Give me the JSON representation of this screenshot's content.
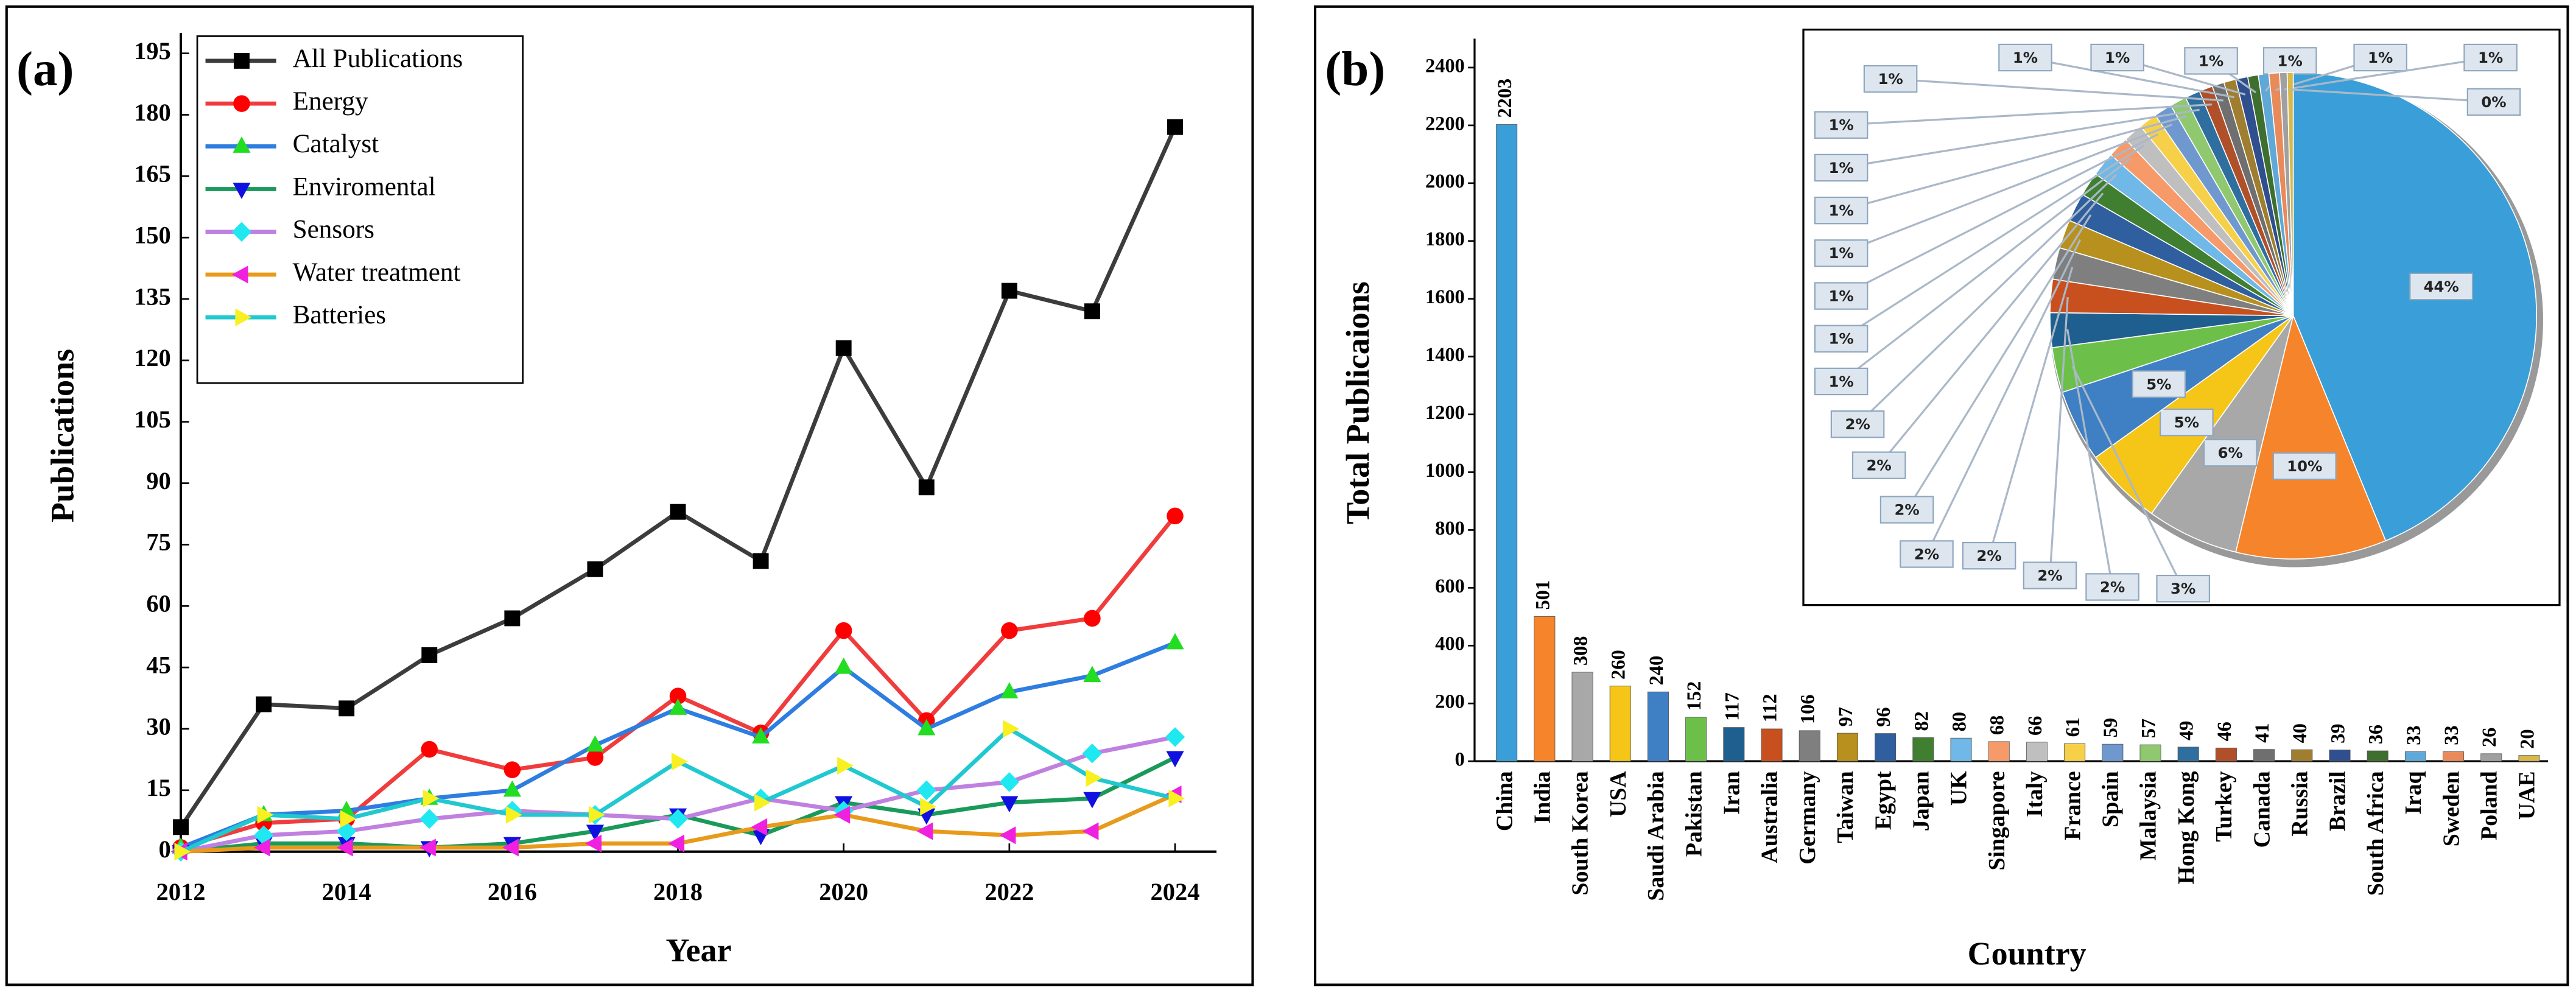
{
  "chart_data": [
    {
      "type": "line",
      "panel_label": "(a)",
      "x_label": "Year",
      "y_label": "Publications",
      "x": [
        2012,
        2013,
        2014,
        2015,
        2016,
        2017,
        2018,
        2019,
        2020,
        2021,
        2022,
        2023,
        2024
      ],
      "xlim": [
        2012,
        2024.5
      ],
      "xticks": [
        2012,
        2014,
        2016,
        2018,
        2020,
        2022,
        2024
      ],
      "ylim": [
        0,
        200
      ],
      "yticks": [
        0,
        15,
        30,
        45,
        60,
        75,
        90,
        105,
        120,
        135,
        150,
        165,
        180,
        195
      ],
      "legend": "upper left",
      "series": [
        {
          "name": "All Publications",
          "color": "#3c3c3c",
          "marker": "square",
          "marker_color": "#000000",
          "values": [
            6,
            36,
            35,
            48,
            57,
            69,
            83,
            71,
            123,
            89,
            137,
            132,
            177
          ]
        },
        {
          "name": "Energy",
          "color": "#f03c3c",
          "marker": "circle",
          "marker_color": "#ff0000",
          "values": [
            1,
            7,
            8,
            25,
            20,
            23,
            38,
            29,
            54,
            32,
            54,
            57,
            82
          ]
        },
        {
          "name": "Catalyst",
          "color": "#2e7de0",
          "marker": "triangle-up",
          "marker_color": "#22dd22",
          "values": [
            1,
            9,
            10,
            13,
            15,
            26,
            35,
            28,
            45,
            30,
            39,
            43,
            51
          ]
        },
        {
          "name": "Enviromental",
          "color": "#1a9a5a",
          "marker": "triangle-down",
          "marker_color": "#1010e0",
          "values": [
            0,
            2,
            2,
            1,
            2,
            5,
            9,
            4,
            12,
            9,
            12,
            13,
            23
          ]
        },
        {
          "name": "Sensors",
          "color": "#c080e0",
          "marker": "diamond",
          "marker_color": "#20e8f0",
          "values": [
            0,
            4,
            5,
            8,
            10,
            9,
            8,
            13,
            10,
            15,
            17,
            24,
            28
          ]
        },
        {
          "name": "Water treatment",
          "color": "#e89a1a",
          "marker": "triangle-left",
          "marker_color": "#f020e0",
          "values": [
            0,
            1,
            1,
            1,
            1,
            2,
            2,
            6,
            9,
            5,
            4,
            5,
            14
          ]
        },
        {
          "name": "Batteries",
          "color": "#20c8d0",
          "marker": "triangle-right",
          "marker_color": "#f8f020",
          "values": [
            0,
            9,
            8,
            13,
            9,
            9,
            22,
            12,
            21,
            11,
            30,
            18,
            13
          ]
        }
      ]
    },
    {
      "type": "bar",
      "panel_label": "(b)",
      "x_label": "Country",
      "y_label": "Total Publicaions",
      "categories": [
        "China",
        "India",
        "South Korea",
        "USA",
        "Saudi Arabia",
        "Pakistan",
        "Iran",
        "Australia",
        "Germany",
        "Taiwan",
        "Egypt",
        "Japan",
        "UK",
        "Singapore",
        "Italy",
        "France",
        "Spain",
        "Malaysia",
        "Hong Kong",
        "Turkey",
        "Canada",
        "Russia",
        "Brazil",
        "South Africa",
        "Iraq",
        "Sweden",
        "Poland",
        "UAE"
      ],
      "values": [
        2203,
        501,
        308,
        260,
        240,
        152,
        117,
        112,
        106,
        97,
        96,
        82,
        80,
        68,
        66,
        61,
        59,
        57,
        49,
        46,
        41,
        40,
        39,
        36,
        33,
        33,
        26,
        20
      ],
      "colors": [
        "#3a9fd8",
        "#f5842a",
        "#a8a8a8",
        "#f5c518",
        "#3f7fc4",
        "#6cc04a",
        "#1f5f8f",
        "#c8501e",
        "#7f7f7f",
        "#b8901e",
        "#2f5f9f",
        "#3f7f2f",
        "#6fb8e8",
        "#f79a6a",
        "#bfbfbf",
        "#f7d04a",
        "#6f98cf",
        "#8fc86f",
        "#2f6f9f",
        "#b0502a",
        "#6f6f6f",
        "#9f7f2f",
        "#2f4f8f",
        "#3f6f2f",
        "#5fa8d8",
        "#e88a5a",
        "#a0a0a0",
        "#d8b84a"
      ],
      "ylim": [
        0,
        2500
      ],
      "yticks": [
        0,
        200,
        400,
        600,
        800,
        1000,
        1200,
        1400,
        1600,
        1800,
        2000,
        2200,
        2400
      ]
    },
    {
      "type": "pie",
      "values": [
        43.8,
        10.0,
        6.1,
        5.2,
        4.8,
        3.0,
        2.3,
        2.2,
        2.1,
        1.9,
        1.9,
        1.6,
        1.6,
        1.4,
        1.3,
        1.2,
        1.2,
        1.1,
        1.0,
        0.9,
        0.8,
        0.8,
        0.8,
        0.7,
        0.7,
        0.7,
        0.5,
        0.4
      ],
      "value_labels": [
        "44%",
        "10%",
        "6%",
        "5%",
        "5%",
        "3%",
        "2%",
        "2%",
        "2%",
        "2%",
        "2%",
        "2%",
        "2%",
        "1%",
        "1%",
        "1%",
        "1%",
        "1%",
        "1%",
        "1%",
        "1%",
        "1%",
        "1%",
        "1%",
        "1%",
        "1%",
        "1%",
        "0%"
      ],
      "colors": [
        "#3a9fd8",
        "#f5842a",
        "#a8a8a8",
        "#f5c518",
        "#3f7fc4",
        "#6cc04a",
        "#1f5f8f",
        "#c8501e",
        "#7f7f7f",
        "#b8901e",
        "#2f5f9f",
        "#3f7f2f",
        "#6fb8e8",
        "#f79a6a",
        "#bfbfbf",
        "#f7d04a",
        "#6f98cf",
        "#8fc86f",
        "#2f6f9f",
        "#b0502a",
        "#6f6f6f",
        "#9f7f2f",
        "#2f4f8f",
        "#3f6f2f",
        "#5fa8d8",
        "#e88a5a",
        "#a0a0a0",
        "#d8b84a"
      ]
    }
  ]
}
